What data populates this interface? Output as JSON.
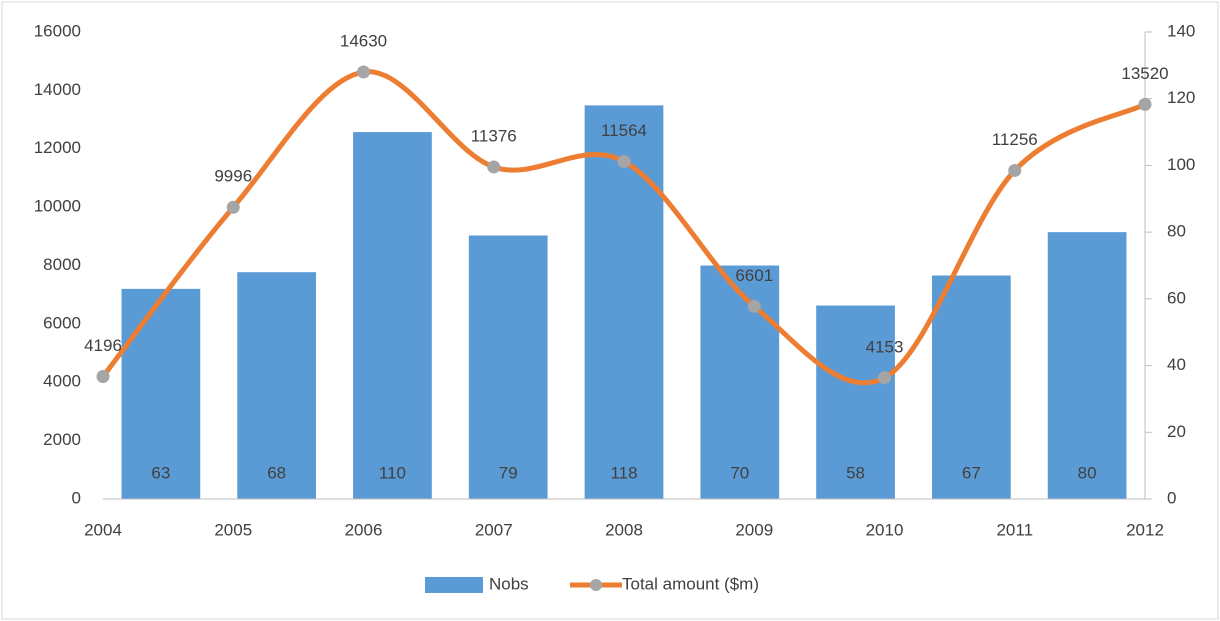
{
  "chart_data": {
    "type": "bar-line",
    "categories": [
      "2004",
      "2005",
      "2006",
      "2007",
      "2008",
      "2009",
      "2010",
      "2011",
      "2012"
    ],
    "series": [
      {
        "name": "Nobs",
        "color": "#5b9bd5",
        "axis": "y2",
        "values": [
          63,
          68,
          110,
          79,
          118,
          70,
          58,
          67,
          80
        ]
      },
      {
        "name": "Total amount ($m)",
        "color": "#ed7d31",
        "marker_color": "#a5a5a5",
        "axis": "y",
        "smooth": true,
        "values": [
          4196,
          9996,
          14630,
          11376,
          11564,
          6601,
          4153,
          11256,
          13520
        ]
      }
    ],
    "ylim": [
      0,
      16000
    ],
    "yticks": [
      0,
      2000,
      4000,
      6000,
      8000,
      10000,
      12000,
      14000,
      16000
    ],
    "y2lim": [
      0,
      140
    ],
    "y2ticks": [
      0,
      20,
      40,
      60,
      80,
      100,
      120,
      140
    ],
    "legend": "bottom",
    "grid": false
  }
}
